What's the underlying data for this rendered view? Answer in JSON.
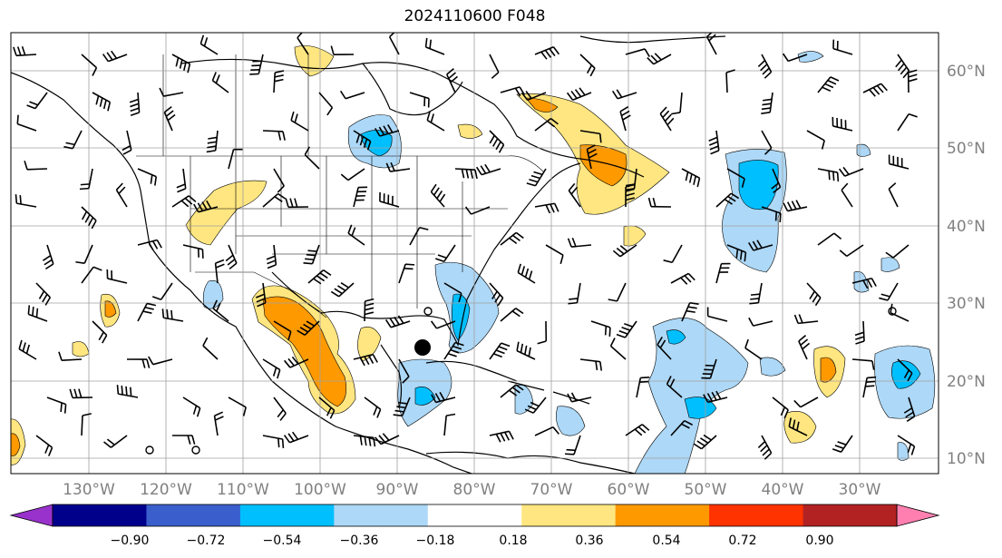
{
  "title": "2024110600 F048",
  "map": {
    "lon_labels": [
      "130°W",
      "120°W",
      "110°W",
      "100°W",
      "90°W",
      "80°W",
      "70°W",
      "60°W",
      "50°W",
      "40°W",
      "30°W"
    ],
    "lat_labels": [
      "60°N",
      "50°N",
      "40°N",
      "30°N",
      "20°N",
      "10°N"
    ],
    "grid": true,
    "label_color": "#808080"
  },
  "colorbar": {
    "ticks": [
      "−0.90",
      "−0.72",
      "−0.54",
      "−0.36",
      "−0.18",
      "0.18",
      "0.36",
      "0.54",
      "0.72",
      "0.90"
    ],
    "colors": [
      "#9932cc",
      "#00008b",
      "#3a5fcd",
      "#00bfff",
      "#add8f7",
      "#ffffff",
      "#ffe680",
      "#ff9900",
      "#ff3300",
      "#b22222",
      "#ff80b0"
    ],
    "extend": "both"
  },
  "marker": {
    "type": "black-dot"
  }
}
